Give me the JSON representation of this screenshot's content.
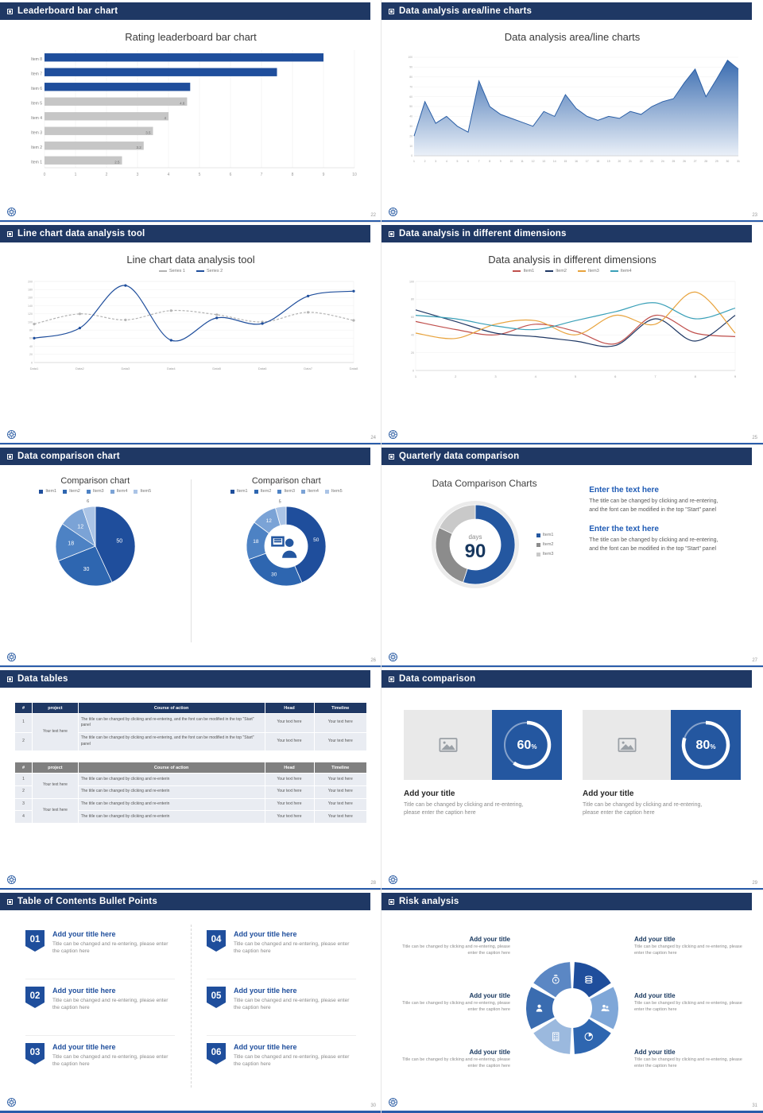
{
  "theme": {
    "header_bg": "#1f3864",
    "accent": "#2457a0",
    "bottom_line": "#2a5caa",
    "bar_blue": "#1f4e9c",
    "bar_gray": "#c6c6c6"
  },
  "footer": {
    "logo_icon": "logo"
  },
  "slides": [
    {
      "header": "Leaderboard bar chart",
      "page": "22",
      "title": "Rating leaderboard bar chart",
      "chart": {
        "type": "hbar",
        "xlim": [
          0,
          10
        ],
        "rows": [
          {
            "label": "Item 8",
            "value": 9,
            "color": "#1f4e9c",
            "text": ""
          },
          {
            "label": "Item 7",
            "value": 7.5,
            "color": "#1f4e9c",
            "text": ""
          },
          {
            "label": "Item 6",
            "value": 4.7,
            "color": "#1f4e9c",
            "text": ""
          },
          {
            "label": "Item 5",
            "value": 4.6,
            "color": "#c6c6c6",
            "text": "4.6"
          },
          {
            "label": "Item 4",
            "value": 4,
            "color": "#c6c6c6",
            "text": "4"
          },
          {
            "label": "Item 3",
            "value": 3.5,
            "color": "#c6c6c6",
            "text": "3.5"
          },
          {
            "label": "Item 2",
            "value": 3.2,
            "color": "#c6c6c6",
            "text": "3.2"
          },
          {
            "label": "Item 1",
            "value": 2.5,
            "color": "#c6c6c6",
            "text": "2.5"
          }
        ]
      }
    },
    {
      "header": "Data analysis area/line charts",
      "page": "23",
      "title": "Data analysis area/line charts",
      "chart": {
        "type": "area",
        "x_start": 1,
        "ylim": [
          0,
          100
        ],
        "ystep": 10,
        "line_color": "#2b5fa6",
        "fill_from": "#3a6cb0",
        "fill_to": "#eaf0f8",
        "values": [
          20,
          55,
          33,
          40,
          30,
          24,
          76,
          50,
          42,
          38,
          34,
          30,
          45,
          40,
          62,
          48,
          40,
          36,
          40,
          38,
          45,
          42,
          50,
          55,
          58,
          74,
          88,
          60,
          78,
          97,
          88
        ]
      }
    },
    {
      "header": "Line chart data analysis tool",
      "page": "24",
      "title": "Line chart data analysis tool",
      "legend": [
        {
          "name": "Series 1",
          "color": "#b3b3b3"
        },
        {
          "name": "Series 2",
          "color": "#1f4e9c"
        }
      ],
      "chart": {
        "type": "line",
        "ylim": [
          0,
          200
        ],
        "ystep": 20,
        "xlabels": [
          "Data1",
          "Data2",
          "Data3",
          "Data4",
          "Data5",
          "Data6",
          "Data7",
          "Data8"
        ],
        "series": [
          {
            "name": "Series 1",
            "color": "#b3b3b3",
            "dash": "3,2",
            "smooth": true,
            "markers": true,
            "values": [
              95,
              120,
              105,
              128,
              118,
              100,
              124,
              104
            ]
          },
          {
            "name": "Series 2",
            "color": "#1f4e9c",
            "smooth": true,
            "markers": true,
            "values": [
              60,
              85,
              190,
              55,
              110,
              96,
              164,
              176
            ]
          }
        ]
      }
    },
    {
      "header": "Data analysis in different dimensions",
      "page": "25",
      "title": "Data analysis in different dimensions",
      "chart": {
        "type": "line",
        "ylim": [
          0,
          100
        ],
        "ystep": 20,
        "xlabels": [
          "1",
          "2",
          "3",
          "4",
          "5",
          "6",
          "7",
          "8",
          "9"
        ],
        "series": [
          {
            "name": "Item1",
            "color": "#c0504d",
            "smooth": true,
            "values": [
              55,
              46,
              40,
              52,
              44,
              30,
              62,
              42,
              38
            ]
          },
          {
            "name": "Item2",
            "color": "#1f3864",
            "smooth": true,
            "values": [
              68,
              55,
              42,
              38,
              33,
              28,
              58,
              33,
              62
            ]
          },
          {
            "name": "Item3",
            "color": "#e8a33d",
            "smooth": true,
            "values": [
              42,
              36,
              52,
              56,
              40,
              62,
              52,
              88,
              42
            ]
          },
          {
            "name": "Item4",
            "color": "#3aa0b8",
            "smooth": true,
            "values": [
              62,
              58,
              50,
              46,
              56,
              66,
              76,
              58,
              70
            ]
          }
        ]
      }
    },
    {
      "header": "Data comparison chart",
      "page": "26",
      "left": {
        "title": "Comparison chart",
        "chart": {
          "type": "pie",
          "r": 50,
          "slices": [
            {
              "name": "Item1",
              "value": 50,
              "label": "50",
              "color": "#1f4e9c",
              "label_color": "#ffffff"
            },
            {
              "name": "Item2",
              "value": 30,
              "label": "30",
              "color": "#2e66b0",
              "label_color": "#ffffff"
            },
            {
              "name": "Item3",
              "value": 18,
              "label": "18",
              "color": "#4d82c4",
              "label_color": "#ffffff"
            },
            {
              "name": "Item4",
              "value": 12,
              "label": "12",
              "color": "#7ba3d6",
              "label_color": "#ffffff"
            },
            {
              "name": "Item5",
              "value": 6,
              "label": "6",
              "color": "#abc4e6",
              "label_color": "#666666",
              "out": true
            }
          ]
        }
      },
      "right": {
        "title": "Comparison chart",
        "chart": {
          "type": "donut",
          "r": 50,
          "ir": 27,
          "center_icon": "presenter",
          "slices": [
            {
              "name": "Item1",
              "value": 50,
              "label": "50",
              "color": "#1f4e9c"
            },
            {
              "name": "Item2",
              "value": 30,
              "label": "30",
              "color": "#2e66b0"
            },
            {
              "name": "Item3",
              "value": 18,
              "label": "18",
              "color": "#4d82c4"
            },
            {
              "name": "Item4",
              "value": 12,
              "label": "12",
              "color": "#7ba3d6"
            },
            {
              "name": "Item5",
              "value": 5,
              "label": "5",
              "color": "#abc4e6",
              "out": true
            }
          ]
        }
      }
    },
    {
      "header": "Quarterly data comparison",
      "page": "27",
      "title": "Data Comparison Charts",
      "chart": {
        "type": "donut",
        "r": 50,
        "ir": 32,
        "shadow": true,
        "center_top": "days",
        "center_main": "90",
        "slices": [
          {
            "name": "Item1",
            "value": 55,
            "color": "#2457a0"
          },
          {
            "name": "Item2",
            "value": 27,
            "color": "#8c8c8c"
          },
          {
            "name": "Item3",
            "value": 18,
            "color": "#c9c9c9"
          }
        ]
      },
      "blocks": [
        {
          "heading": "Enter the text here",
          "body": "The title can be changed by clicking and re-entering, and the font can be modified in the top \"Start\" panel"
        },
        {
          "heading": "Enter the text here",
          "body": "The title can be changed by clicking and re-entering, and the font can be modified in the top \"Start\" panel"
        }
      ]
    },
    {
      "header": "Data tables",
      "page": "28",
      "table1": {
        "header_bg": "#1f3864",
        "columns": [
          "#",
          "project",
          "Course of action",
          "Head",
          "Timeline"
        ],
        "widths": [
          "5%",
          "13%",
          "53%",
          "14%",
          "15%"
        ],
        "rows": [
          [
            {
              "t": "1"
            },
            {
              "t": "Your text here",
              "rs": 2
            },
            {
              "t": "The title can be changed by clicking and re-entering, and the font can be modified in the top \"Start\" panel"
            },
            {
              "t": "Your text here"
            },
            {
              "t": "Your text here"
            }
          ],
          [
            {
              "t": "2"
            },
            null,
            {
              "t": "The title can be changed by clicking and re-entering, and the font can be modified in the top \"Start\" panel"
            },
            {
              "t": "Your text here"
            },
            {
              "t": "Your text here"
            }
          ]
        ]
      },
      "table2": {
        "header_bg": "#808080",
        "columns": [
          "#",
          "project",
          "Course of action",
          "Head",
          "Timeline"
        ],
        "widths": [
          "5%",
          "13%",
          "53%",
          "14%",
          "15%"
        ],
        "rows": [
          [
            {
              "t": "1"
            },
            {
              "t": "Your text here",
              "rs": 2
            },
            {
              "t": "The title can be changed by clicking and re-enterin"
            },
            {
              "t": "Your text here"
            },
            {
              "t": "Your text here"
            }
          ],
          [
            {
              "t": "2"
            },
            null,
            {
              "t": "The title can be changed by clicking and re-enterin"
            },
            {
              "t": "Your text here"
            },
            {
              "t": "Your text here"
            }
          ],
          [
            {
              "t": "3"
            },
            {
              "t": "Your text here",
              "rs": 2
            },
            {
              "t": "The title can be changed by clicking and re-enterin"
            },
            {
              "t": "Your text here"
            },
            {
              "t": "Your text here"
            }
          ],
          [
            {
              "t": "4"
            },
            null,
            {
              "t": "The title can be changed by clicking and re-enterin"
            },
            {
              "t": "Your text here"
            },
            {
              "t": "Your text here"
            }
          ]
        ]
      }
    },
    {
      "header": "Data comparison",
      "page": "29",
      "cards": [
        {
          "icon": "image",
          "ring": {
            "type": "ring",
            "percent": 60,
            "label": "60",
            "unit": "%"
          },
          "title": "Add your title",
          "caption": "Title can be changed by clicking and re-entering, please enter the caption here"
        },
        {
          "icon": "image",
          "ring": {
            "type": "ring",
            "percent": 80,
            "label": "80",
            "unit": "%"
          },
          "title": "Add your title",
          "caption": "Title can be changed by clicking and re-entering, please enter the caption here"
        }
      ]
    },
    {
      "header": "Table of Contents Bullet Points",
      "page": "30",
      "items": [
        {
          "num": "01",
          "title": "Add your title here",
          "caption": "Title can be changed and re-entering, please enter the caption here"
        },
        {
          "num": "02",
          "title": "Add your title here",
          "caption": "Title can be changed and re-entering, please enter the caption here"
        },
        {
          "num": "03",
          "title": "Add your title here",
          "caption": "Title can be changed and re-entering, please enter the caption here"
        },
        {
          "num": "04",
          "title": "Add your title here",
          "caption": "Title can be changed and re-entering, please enter the caption here"
        },
        {
          "num": "05",
          "title": "Add your title here",
          "caption": "Title can be changed and re-entering, please enter the caption here"
        },
        {
          "num": "06",
          "title": "Add your title here",
          "caption": "Title can be changed and re-entering, please enter the caption here"
        }
      ]
    },
    {
      "header": "Risk analysis",
      "page": "31",
      "left_items": [
        {
          "title": "Add your title",
          "caption": "Title can be changed by clicking and re-entering, please enter the caption here"
        },
        {
          "title": "Add your title",
          "caption": "Title can be changed by clicking and re-entering, please enter the caption here"
        },
        {
          "title": "Add your title",
          "caption": "Title can be changed by clicking and re-entering, please enter the caption here"
        }
      ],
      "right_items": [
        {
          "title": "Add your title",
          "caption": "Title can be changed by clicking and re-entering, please enter the caption here"
        },
        {
          "title": "Add your title",
          "caption": "Title can be changed by clicking and re-entering, please enter the caption here"
        },
        {
          "title": "Add your title",
          "caption": "Title can be changed by clicking and re-entering, please enter the caption here"
        }
      ],
      "chart": {
        "type": "pinwheel",
        "r": 58,
        "ir": 25,
        "segments": [
          {
            "icon": "coins",
            "color": "#1f4e9c"
          },
          {
            "icon": "people",
            "color": "#7fa7d8"
          },
          {
            "icon": "pie-chart",
            "color": "#2e66b0"
          },
          {
            "icon": "building",
            "color": "#9bb9de"
          },
          {
            "icon": "person",
            "color": "#3a6cb0"
          },
          {
            "icon": "money-bag",
            "color": "#5b87c4"
          }
        ]
      }
    }
  ]
}
